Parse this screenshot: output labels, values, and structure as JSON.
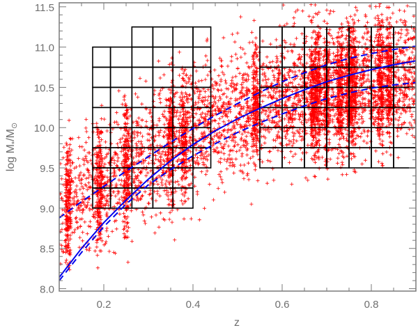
{
  "chart_data": {
    "type": "scatter",
    "xlabel": "z",
    "ylabel_main": "log M",
    "ylabel_sub1": "*",
    "ylabel_mid": "/M",
    "ylabel_sub2": "⊙",
    "xlim": [
      0.1,
      0.9
    ],
    "ylim": [
      7.97,
      11.55
    ],
    "x_ticks": [
      0.2,
      0.4,
      0.6,
      0.8
    ],
    "x_tick_labels": [
      "0.2",
      "0.4",
      "0.6",
      "0.8"
    ],
    "y_ticks": [
      8.0,
      8.5,
      9.0,
      9.5,
      10.0,
      10.5,
      11.0,
      11.5
    ],
    "y_tick_labels": [
      "8.0",
      "8.5",
      "9.0",
      "9.5",
      "10.0",
      "10.5",
      "11.0",
      "11.5"
    ],
    "colors": {
      "points": "#ff0000",
      "curves": "#0000ee",
      "grid": "#000000",
      "axes": "#7a7a7a"
    },
    "scatter": {
      "marker": "plus",
      "approx_count": 6000,
      "lower_envelope": {
        "z": [
          0.1,
          0.2,
          0.3,
          0.4,
          0.5,
          0.6,
          0.7,
          0.8,
          0.9
        ],
        "log_mass": [
          8.1,
          8.2,
          8.35,
          8.6,
          8.85,
          9.1,
          9.35,
          9.5,
          9.6
        ]
      },
      "peak": {
        "z": [
          0.1,
          0.2,
          0.3,
          0.4,
          0.5,
          0.6,
          0.7,
          0.8,
          0.9
        ],
        "log_mass": [
          9.0,
          9.3,
          9.65,
          9.95,
          10.2,
          10.35,
          10.45,
          10.55,
          10.6
        ]
      },
      "upper_envelope": 11.55,
      "dense_z": [
        0.12,
        0.19,
        0.25,
        0.35,
        0.38,
        0.54,
        0.67,
        0.68,
        0.7,
        0.73,
        0.75,
        0.76,
        0.82,
        0.84
      ]
    },
    "curves": [
      {
        "style": "solid",
        "z": [
          0.1,
          0.15,
          0.2,
          0.25,
          0.3,
          0.35,
          0.4,
          0.45,
          0.5,
          0.55,
          0.6,
          0.65,
          0.7,
          0.75,
          0.8,
          0.85,
          0.9
        ],
        "log_mass": [
          8.14,
          8.5,
          8.82,
          9.1,
          9.36,
          9.59,
          9.79,
          9.96,
          10.11,
          10.24,
          10.36,
          10.47,
          10.57,
          10.65,
          10.72,
          10.78,
          10.83
        ]
      },
      {
        "style": "dashed",
        "z": [
          0.1,
          0.15,
          0.2,
          0.25,
          0.3,
          0.35,
          0.4,
          0.45,
          0.5,
          0.55,
          0.6,
          0.65,
          0.7,
          0.75,
          0.8,
          0.85,
          0.9
        ],
        "log_mass": [
          8.88,
          9.08,
          9.27,
          9.46,
          9.64,
          9.82,
          9.99,
          10.15,
          10.3,
          10.44,
          10.57,
          10.68,
          10.78,
          10.86,
          10.92,
          10.97,
          11.01
        ]
      },
      {
        "style": "dashed",
        "z": [
          0.1,
          0.15,
          0.2,
          0.25,
          0.3,
          0.35,
          0.4,
          0.45,
          0.5,
          0.55,
          0.6,
          0.65,
          0.7,
          0.75,
          0.8,
          0.85,
          0.9
        ],
        "log_mass": [
          8.1,
          8.45,
          8.77,
          9.05,
          9.29,
          9.48,
          9.65,
          9.8,
          9.94,
          10.06,
          10.17,
          10.27,
          10.36,
          10.43,
          10.49,
          10.53,
          10.56
        ]
      }
    ],
    "grids": [
      {
        "region": "low-z",
        "z_bounds": [
          0.175,
          0.215,
          0.263,
          0.31,
          0.355,
          0.4,
          0.44
        ],
        "log_mass_bounds": [
          9.0,
          9.25,
          9.5,
          9.75,
          10.0,
          10.25,
          10.5,
          10.75,
          11.0,
          11.25
        ],
        "cells": [
          [
            1,
            1,
            1,
            1,
            1,
            0
          ],
          [
            1,
            1,
            1,
            1,
            1,
            0
          ],
          [
            1,
            1,
            1,
            1,
            1,
            1
          ],
          [
            1,
            1,
            1,
            1,
            1,
            1
          ],
          [
            1,
            1,
            1,
            1,
            1,
            1
          ],
          [
            1,
            1,
            1,
            1,
            1,
            1
          ],
          [
            1,
            1,
            1,
            1,
            1,
            1
          ],
          [
            1,
            1,
            1,
            1,
            1,
            1
          ],
          [
            0,
            0,
            1,
            1,
            1,
            1
          ]
        ]
      },
      {
        "region": "high-z",
        "z_bounds": [
          0.55,
          0.6,
          0.65,
          0.7,
          0.75,
          0.8,
          0.85,
          0.9
        ],
        "log_mass_bounds": [
          9.5,
          9.75,
          10.0,
          10.25,
          10.5,
          10.75,
          11.0,
          11.25
        ],
        "cells": "all"
      }
    ]
  }
}
